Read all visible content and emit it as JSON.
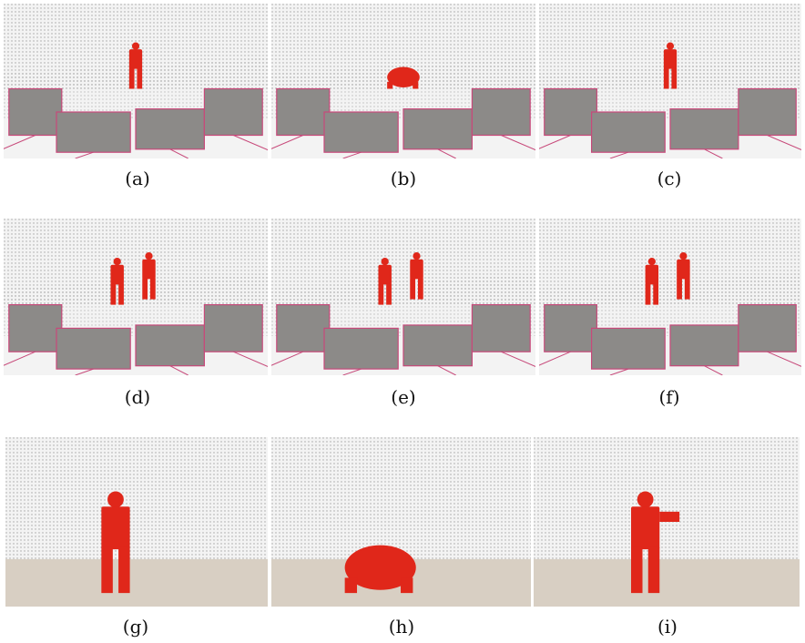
{
  "figure": {
    "panels": [
      {
        "id": "a",
        "caption": "(a)",
        "view": "overview",
        "persons": 1,
        "pose": "standing"
      },
      {
        "id": "b",
        "caption": "(b)",
        "view": "overview",
        "persons": 1,
        "pose": "crouching"
      },
      {
        "id": "c",
        "caption": "(c)",
        "view": "overview-close",
        "persons": 1,
        "pose": "standing"
      },
      {
        "id": "d",
        "caption": "(d)",
        "view": "overview",
        "persons": 2,
        "pose": "walking"
      },
      {
        "id": "e",
        "caption": "(e)",
        "view": "overview",
        "persons": 2,
        "pose": "walking"
      },
      {
        "id": "f",
        "caption": "(f)",
        "view": "overview",
        "persons": 2,
        "pose": "overlapping"
      },
      {
        "id": "g",
        "caption": "(g)",
        "view": "closeup",
        "persons": 1,
        "pose": "standing"
      },
      {
        "id": "h",
        "caption": "(h)",
        "view": "closeup",
        "persons": 1,
        "pose": "crouching"
      },
      {
        "id": "i",
        "caption": "(i)",
        "view": "closeup",
        "persons": 1,
        "pose": "standing-arm"
      }
    ],
    "colors": {
      "figure": "#e0271a",
      "camera_frustum": "#c7497a",
      "point_cloud": "#9a9a9a",
      "background": "#f3f3f3",
      "ground_closeup": "#d8cfc3"
    }
  }
}
